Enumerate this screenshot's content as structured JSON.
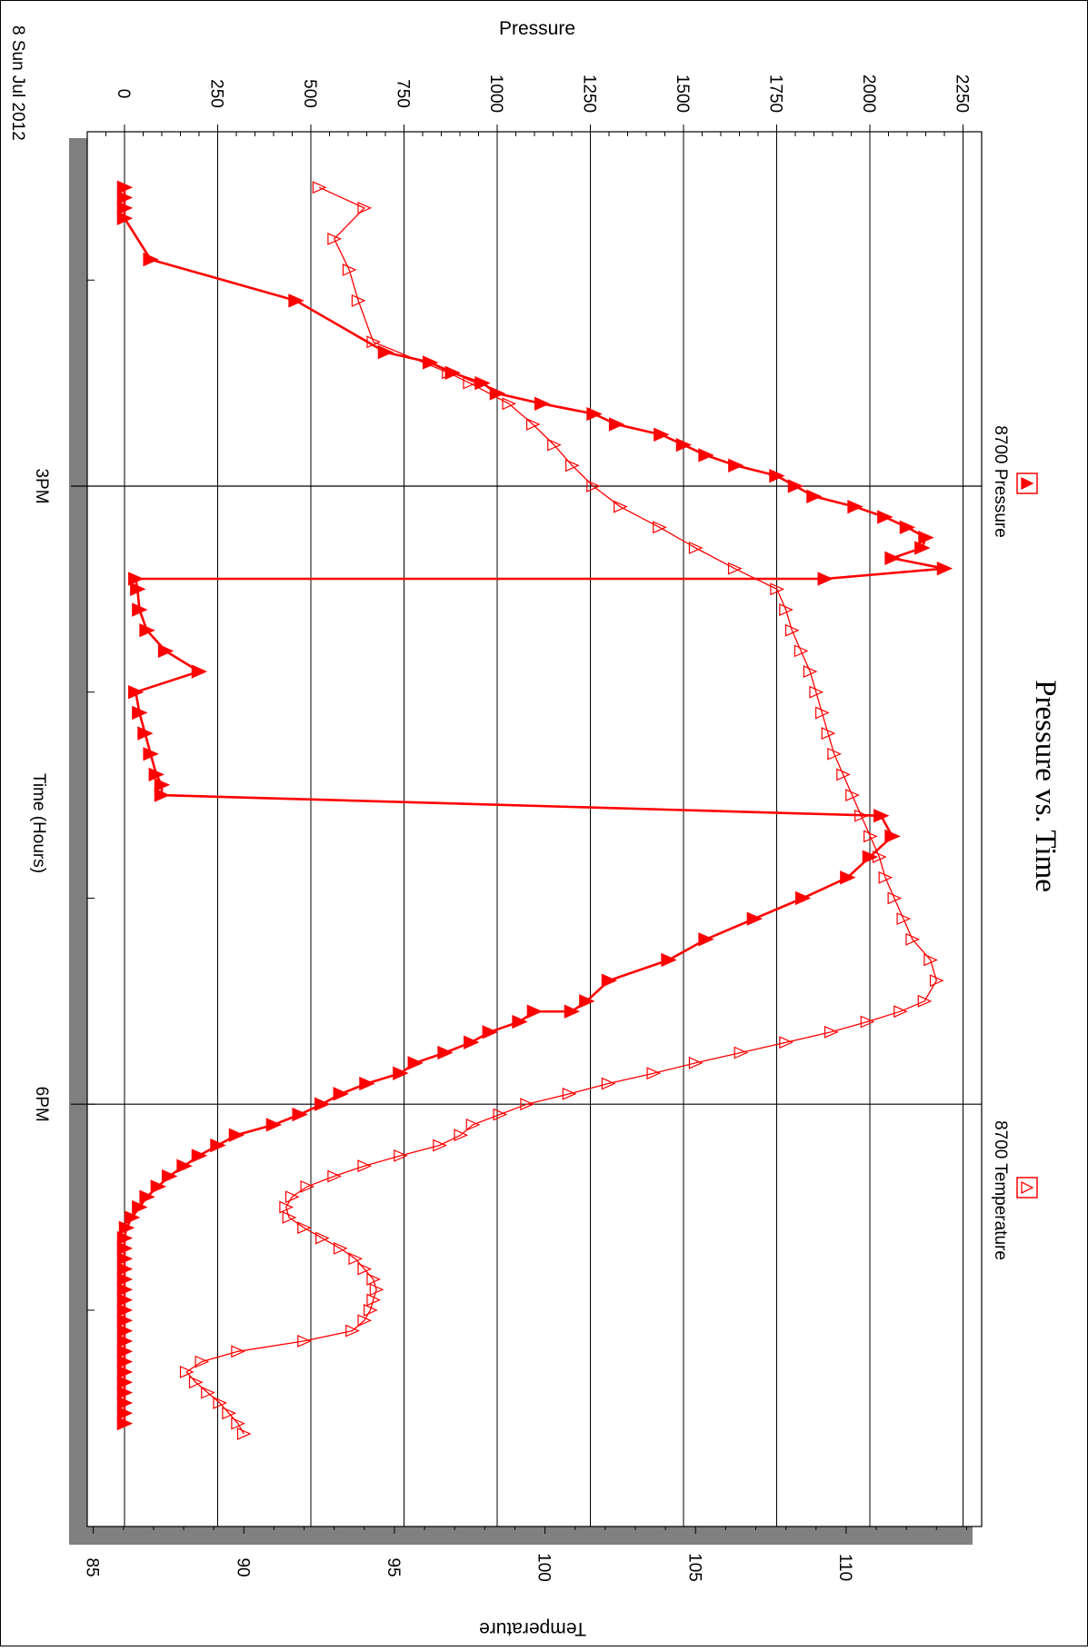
{
  "chart_data": {
    "type": "line",
    "title": "Pressure vs. Time",
    "xlabel": "Time (Hours)",
    "date_label": "8 Sun Jul 2012",
    "x_ticks": [
      {
        "label": "3PM",
        "hour": 15
      },
      {
        "label": "6PM",
        "hour": 18
      }
    ],
    "xlim_hours": [
      13.28,
      20.05
    ],
    "grid": true,
    "legend_placement": "top",
    "y_axes": {
      "pressure": {
        "label": "Pressure",
        "ylim": [
          -100,
          2300
        ],
        "ticks": [
          0,
          250,
          500,
          750,
          1000,
          1250,
          1500,
          1750,
          2000,
          2250
        ]
      },
      "temperature": {
        "label": "Temperature",
        "ylim": [
          84.8,
          114.5
        ],
        "ticks": [
          85,
          90,
          95,
          100,
          105,
          110
        ]
      }
    },
    "series": [
      {
        "name": "8700 Pressure",
        "axis": "pressure",
        "color": "#ff0000",
        "marker": "filled-triangle",
        "x_hours": [
          13.55,
          13.6,
          13.65,
          13.7,
          13.9,
          14.1,
          14.35,
          14.4,
          14.45,
          14.5,
          14.55,
          14.6,
          14.65,
          14.7,
          14.75,
          14.8,
          14.85,
          14.9,
          14.95,
          15.0,
          15.05,
          15.1,
          15.15,
          15.2,
          15.25,
          15.3,
          15.35,
          15.4,
          15.45,
          15.45,
          15.5,
          15.6,
          15.7,
          15.8,
          15.9,
          16.0,
          16.1,
          16.2,
          16.3,
          16.4,
          16.45,
          16.5,
          16.6,
          16.7,
          16.8,
          16.9,
          17.0,
          17.1,
          17.2,
          17.3,
          17.4,
          17.5,
          17.55,
          17.55,
          17.6,
          17.65,
          17.7,
          17.75,
          17.8,
          17.85,
          17.9,
          17.95,
          18.0,
          18.05,
          18.1,
          18.15,
          18.2,
          18.25,
          18.3,
          18.35,
          18.4,
          18.45,
          18.5,
          18.55,
          18.6,
          18.65,
          18.7,
          18.75,
          18.8,
          18.85,
          18.9,
          18.95,
          19.0,
          19.05,
          19.1,
          19.15,
          19.2,
          19.25,
          19.3,
          19.35,
          19.4,
          19.45,
          19.5,
          19.55
        ],
        "values": [
          0,
          0,
          0,
          0,
          70,
          460,
          700,
          820,
          880,
          960,
          1000,
          1120,
          1260,
          1320,
          1440,
          1500,
          1560,
          1640,
          1750,
          1800,
          1850,
          1960,
          2040,
          2100,
          2150,
          2140,
          2060,
          2200,
          1880,
          30,
          35,
          40,
          60,
          110,
          200,
          30,
          40,
          55,
          70,
          85,
          100,
          100,
          2030,
          2060,
          2000,
          1940,
          1820,
          1690,
          1560,
          1460,
          1300,
          1240,
          1200,
          1100,
          1060,
          980,
          930,
          860,
          780,
          740,
          650,
          580,
          530,
          470,
          400,
          300,
          250,
          200,
          160,
          120,
          90,
          60,
          40,
          20,
          5,
          0,
          0,
          0,
          0,
          0,
          0,
          0,
          0,
          0,
          0,
          0,
          0,
          0,
          0,
          0,
          0,
          0,
          0,
          0
        ]
      },
      {
        "name": "8700 Temperature",
        "axis": "temperature",
        "color": "#ff0000",
        "marker": "open-triangle",
        "x_hours": [
          13.55,
          13.65,
          13.8,
          13.95,
          14.1,
          14.3,
          14.45,
          14.5,
          14.6,
          14.7,
          14.8,
          14.9,
          15.0,
          15.1,
          15.2,
          15.3,
          15.4,
          15.5,
          15.6,
          15.7,
          15.8,
          15.9,
          16.0,
          16.1,
          16.2,
          16.3,
          16.4,
          16.5,
          16.6,
          16.7,
          16.8,
          16.9,
          17.0,
          17.1,
          17.2,
          17.3,
          17.4,
          17.5,
          17.55,
          17.6,
          17.65,
          17.7,
          17.75,
          17.8,
          17.85,
          17.9,
          17.95,
          18.0,
          18.05,
          18.1,
          18.15,
          18.2,
          18.25,
          18.3,
          18.35,
          18.4,
          18.45,
          18.5,
          18.55,
          18.6,
          18.65,
          18.7,
          18.75,
          18.8,
          18.85,
          18.9,
          18.95,
          19.0,
          19.05,
          19.1,
          19.15,
          19.2,
          19.25,
          19.3,
          19.35,
          19.4,
          19.45,
          19.5,
          19.55,
          19.6
        ],
        "values": [
          92.5,
          94.0,
          93.0,
          93.5,
          93.8,
          94.3,
          96.8,
          97.5,
          98.8,
          99.6,
          100.3,
          100.9,
          101.6,
          102.5,
          103.8,
          105.0,
          106.3,
          107.7,
          108.0,
          108.2,
          108.5,
          108.8,
          109.0,
          109.2,
          109.4,
          109.6,
          109.9,
          110.2,
          110.5,
          110.8,
          111.1,
          111.3,
          111.6,
          111.9,
          112.2,
          112.8,
          113.0,
          112.6,
          111.8,
          110.7,
          109.5,
          108.0,
          106.5,
          105.0,
          103.6,
          102.1,
          100.8,
          99.4,
          98.5,
          97.6,
          97.2,
          96.5,
          95.2,
          94.0,
          93.0,
          92.1,
          91.6,
          91.4,
          91.5,
          92.0,
          92.6,
          93.2,
          93.7,
          94.0,
          94.3,
          94.4,
          94.3,
          94.2,
          94.0,
          93.6,
          92.0,
          89.8,
          88.6,
          88.1,
          88.4,
          88.8,
          89.2,
          89.5,
          89.8,
          90.0
        ]
      }
    ]
  }
}
